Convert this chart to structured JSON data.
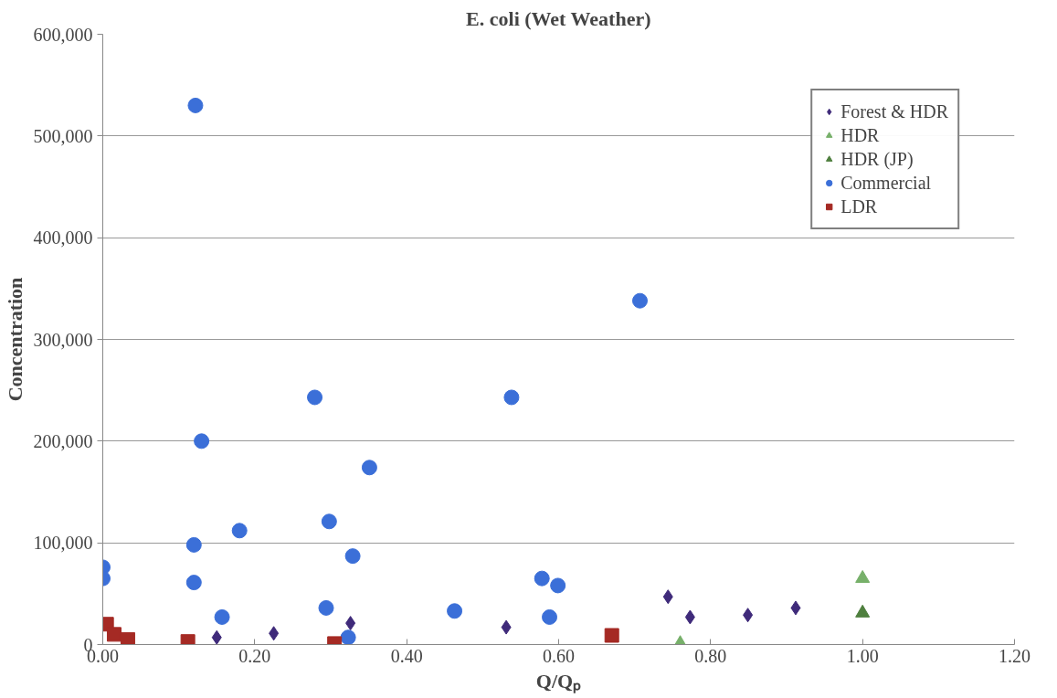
{
  "chart_data": {
    "type": "scatter",
    "title": "E. coli (Wet Weather)",
    "xlabel": "Q/Qₚ",
    "ylabel": "Concentration",
    "xlim": [
      0,
      1.2
    ],
    "ylim": [
      0,
      600000
    ],
    "xticks": [
      {
        "value": 0,
        "label": "0.00"
      },
      {
        "value": 0.2,
        "label": "0.20"
      },
      {
        "value": 0.4,
        "label": "0.40"
      },
      {
        "value": 0.6,
        "label": "0.60"
      },
      {
        "value": 0.8,
        "label": "0.80"
      },
      {
        "value": 1.0,
        "label": "1.00"
      },
      {
        "value": 1.2,
        "label": "1.20"
      }
    ],
    "yticks": [
      0,
      {
        "value": 100000,
        "label": "100,000"
      },
      {
        "value": 200000,
        "label": "200,000"
      },
      {
        "value": 300000,
        "label": "300,000"
      },
      {
        "value": 400000,
        "label": "400,000"
      },
      {
        "value": 500000,
        "label": "500,000"
      },
      {
        "value": 600000,
        "label": "600,000"
      }
    ],
    "grid": "y",
    "legend": "top right",
    "series": [
      {
        "name": "Forest & HDR",
        "color": "#3f2a7a",
        "marker": "diamond",
        "x": [
          0.15,
          0.225,
          0.326,
          0.531,
          0.744,
          0.773,
          0.849,
          0.912
        ],
        "values": [
          7000,
          11000,
          21000,
          17000,
          47000,
          27000,
          29000,
          36000
        ]
      },
      {
        "name": "HDR",
        "color": "#77b06a",
        "marker": "triangle",
        "x": [
          0.76,
          1.0
        ],
        "values": [
          1000,
          65000
        ]
      },
      {
        "name": "HDR (JP)",
        "color": "#4e7f3e",
        "marker": "triangle",
        "x": [
          1.0
        ],
        "values": [
          31000
        ]
      },
      {
        "name": "Commercial",
        "color": "#3b6fd8",
        "marker": "circle",
        "x": [
          0.0,
          0.0,
          0.122,
          0.13,
          0.12,
          0.12,
          0.18,
          0.157,
          0.279,
          0.298,
          0.351,
          0.329,
          0.294,
          0.323,
          0.463,
          0.538,
          0.578,
          0.599,
          0.588,
          0.707
        ],
        "values": [
          76000,
          65000,
          530000,
          200000,
          98000,
          61000,
          112000,
          27000,
          243000,
          121000,
          174000,
          87000,
          36000,
          7000,
          33000,
          243000,
          65000,
          58000,
          27000,
          338000
        ]
      },
      {
        "name": "LDR",
        "color": "#a52a24",
        "marker": "square",
        "x": [
          0.005,
          0.015,
          0.033,
          0.112,
          0.305,
          0.67
        ],
        "values": [
          20000,
          10000,
          5000,
          3000,
          1000,
          9000
        ]
      }
    ]
  }
}
